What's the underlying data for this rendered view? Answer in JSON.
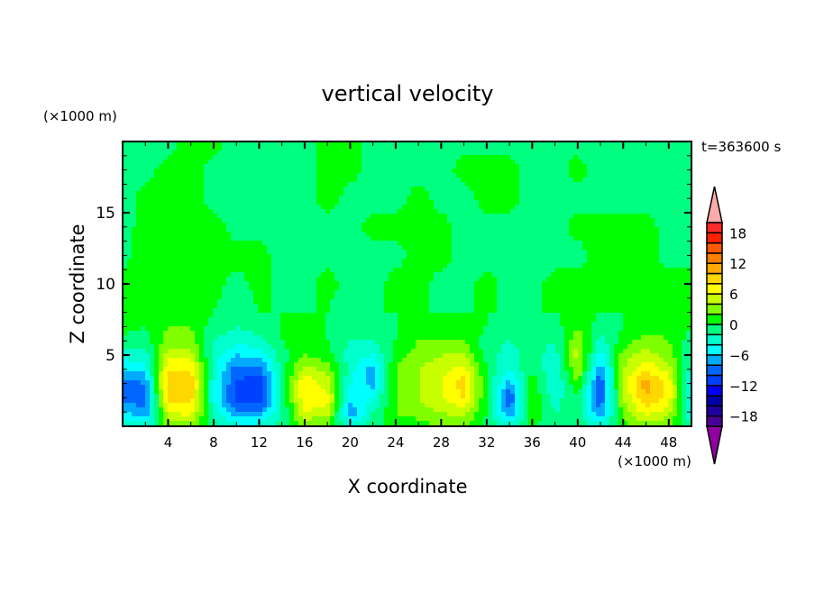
{
  "chart_data": {
    "type": "heatmap",
    "title": "vertical velocity",
    "xlabel": "X coordinate",
    "ylabel": "Z coordinate",
    "x_unit": "(×1000 m)",
    "y_unit": "(×1000 m)",
    "time_label": "t=363600 s",
    "xlim": [
      0,
      50
    ],
    "ylim": [
      0,
      20
    ],
    "xticks": [
      4,
      8,
      12,
      16,
      20,
      24,
      28,
      32,
      36,
      40,
      44,
      48
    ],
    "yticks": [
      5,
      10,
      15
    ],
    "x": [
      0,
      2,
      4,
      6,
      8,
      10,
      12,
      14,
      16,
      18,
      20,
      22,
      24,
      26,
      28,
      30,
      32,
      34,
      36,
      38,
      40,
      42,
      44,
      46,
      48,
      50
    ],
    "z": [
      0,
      1,
      2,
      3,
      4,
      5,
      6,
      7,
      8,
      10,
      12,
      14,
      16,
      18,
      20
    ],
    "values": [
      [
        -2,
        -3,
        2,
        3,
        -1,
        -3,
        -3,
        -1,
        2,
        2,
        -3,
        -1,
        1,
        1,
        2,
        2,
        -1,
        -3,
        0,
        -1,
        -1,
        -3,
        1,
        3,
        2,
        -2
      ],
      [
        -6,
        -8,
        6,
        7,
        -3,
        -8,
        -8,
        -2,
        6,
        5,
        -8,
        -2,
        2,
        3,
        4,
        5,
        0,
        -8,
        2,
        -2,
        -1,
        -8,
        3,
        7,
        5,
        -4
      ],
      [
        -9,
        -9,
        9,
        9,
        -4,
        -11,
        -12,
        -2,
        8,
        7,
        -5,
        -4,
        2,
        4,
        6,
        8,
        0,
        -10,
        2,
        -3,
        0,
        -10,
        4,
        10,
        7,
        -4
      ],
      [
        -9,
        -8,
        10,
        10,
        -4,
        -10,
        -12,
        -2,
        8,
        5,
        -4,
        -7,
        2,
        4,
        6,
        9,
        0,
        -7,
        1,
        -4,
        2,
        -10,
        5,
        11,
        7,
        -4
      ],
      [
        -6,
        -5,
        8,
        8,
        -3,
        -9,
        -9,
        -1,
        5,
        3,
        -3,
        -7,
        2,
        4,
        5,
        7,
        0,
        -4,
        0,
        -4,
        4,
        -8,
        4,
        8,
        5,
        -3
      ],
      [
        -3,
        -3,
        5,
        5,
        -3,
        -6,
        -5,
        -1,
        2,
        1,
        -3,
        -4,
        1,
        3,
        4,
        4,
        -1,
        -3,
        -1,
        -3,
        5,
        -5,
        3,
        5,
        3,
        -2
      ],
      [
        -1,
        -1,
        3,
        3,
        -2,
        -3,
        -3,
        0,
        1,
        0,
        -2,
        -2,
        0,
        2,
        2,
        2,
        -1,
        -2,
        -1,
        -2,
        4,
        -3,
        1,
        3,
        2,
        -1
      ],
      [
        1,
        0,
        2,
        2,
        -1,
        -2,
        -1,
        0,
        0,
        0,
        -1,
        -1,
        0,
        1,
        1,
        1,
        0,
        -1,
        0,
        -1,
        2,
        -1,
        0,
        1,
        1,
        0
      ],
      [
        2,
        1,
        1,
        1,
        0,
        -1,
        0,
        0,
        0,
        0,
        -1,
        0,
        0,
        0,
        0,
        0,
        0,
        0,
        0,
        0,
        1,
        0,
        0,
        0,
        1,
        0
      ],
      [
        0.5,
        1,
        1,
        1,
        0.5,
        -0.5,
        0.5,
        -0.5,
        -0.5,
        0.5,
        -0.5,
        -0.5,
        0.5,
        0.5,
        -0.5,
        -0.5,
        0.5,
        -0.5,
        -0.5,
        0.5,
        0.5,
        0.5,
        0.5,
        0.5,
        0.5,
        0.5
      ],
      [
        -0.5,
        1,
        1,
        1,
        0.5,
        0.5,
        0.5,
        -0.5,
        -0.5,
        -0.5,
        -0.5,
        -0.5,
        -0.5,
        0.5,
        0.5,
        -0.5,
        -0.5,
        -0.5,
        -0.5,
        -0.5,
        -0.5,
        0.5,
        0.5,
        0.5,
        -0.5,
        -0.5
      ],
      [
        -0.5,
        0.5,
        1,
        1,
        0.5,
        -0.5,
        -0.5,
        -0.5,
        -0.5,
        -0.5,
        -0.5,
        0.5,
        0.5,
        0.5,
        0.5,
        -0.5,
        -0.5,
        -0.5,
        -0.5,
        -0.5,
        0.5,
        0.5,
        0.5,
        0.5,
        -0.5,
        -0.5
      ],
      [
        -0.5,
        0.5,
        0.5,
        0.5,
        -0.5,
        -0.5,
        -0.5,
        -0.5,
        -0.5,
        0.5,
        -0.5,
        -0.5,
        -0.5,
        0.5,
        -0.5,
        -0.5,
        0.5,
        0.5,
        -0.5,
        -0.5,
        -0.5,
        -0.5,
        -0.5,
        -0.5,
        -0.5,
        -0.5
      ],
      [
        -0.5,
        -0.5,
        0.5,
        0.5,
        -0.5,
        -0.5,
        -0.5,
        -0.5,
        -0.5,
        0.5,
        0.5,
        -0.5,
        -0.5,
        -0.5,
        -0.5,
        0.5,
        0.5,
        0.5,
        -0.5,
        -0.5,
        0.5,
        -0.5,
        -0.5,
        -0.5,
        -0.5,
        -0.5
      ],
      [
        -0.5,
        -0.5,
        -0.5,
        0.5,
        0.5,
        -0.5,
        -0.5,
        -0.5,
        -0.5,
        0.5,
        0.5,
        -0.5,
        -0.5,
        -0.5,
        -0.5,
        -0.5,
        -0.5,
        -0.5,
        -0.5,
        -0.5,
        -0.5,
        -0.5,
        -0.5,
        -0.5,
        -0.5,
        -0.5
      ]
    ],
    "colorbar": {
      "levels": [
        -20,
        -18,
        -16,
        -14,
        -12,
        -10,
        -8,
        -6,
        -4,
        -2,
        0,
        2,
        4,
        6,
        8,
        10,
        12,
        14,
        16,
        18,
        20
      ],
      "colors": [
        "#4b0096",
        "#2000a0",
        "#0000aa",
        "#0000ff",
        "#0040ff",
        "#0066ff",
        "#00aaff",
        "#00ffff",
        "#00ffcc",
        "#00ff80",
        "#00ff00",
        "#80ff00",
        "#c8ff00",
        "#ffff00",
        "#ffd700",
        "#ffaa00",
        "#ff7f00",
        "#ff5a00",
        "#ff2000",
        "#ff2a2a"
      ],
      "under_color": "#9000a0",
      "over_color": "#ffaaaa",
      "tick_labels": [
        "18",
        "12",
        "6",
        "0",
        "-6",
        "-12",
        "-18"
      ],
      "tick_values": [
        18,
        12,
        6,
        0,
        -6,
        -12,
        -18
      ]
    }
  }
}
